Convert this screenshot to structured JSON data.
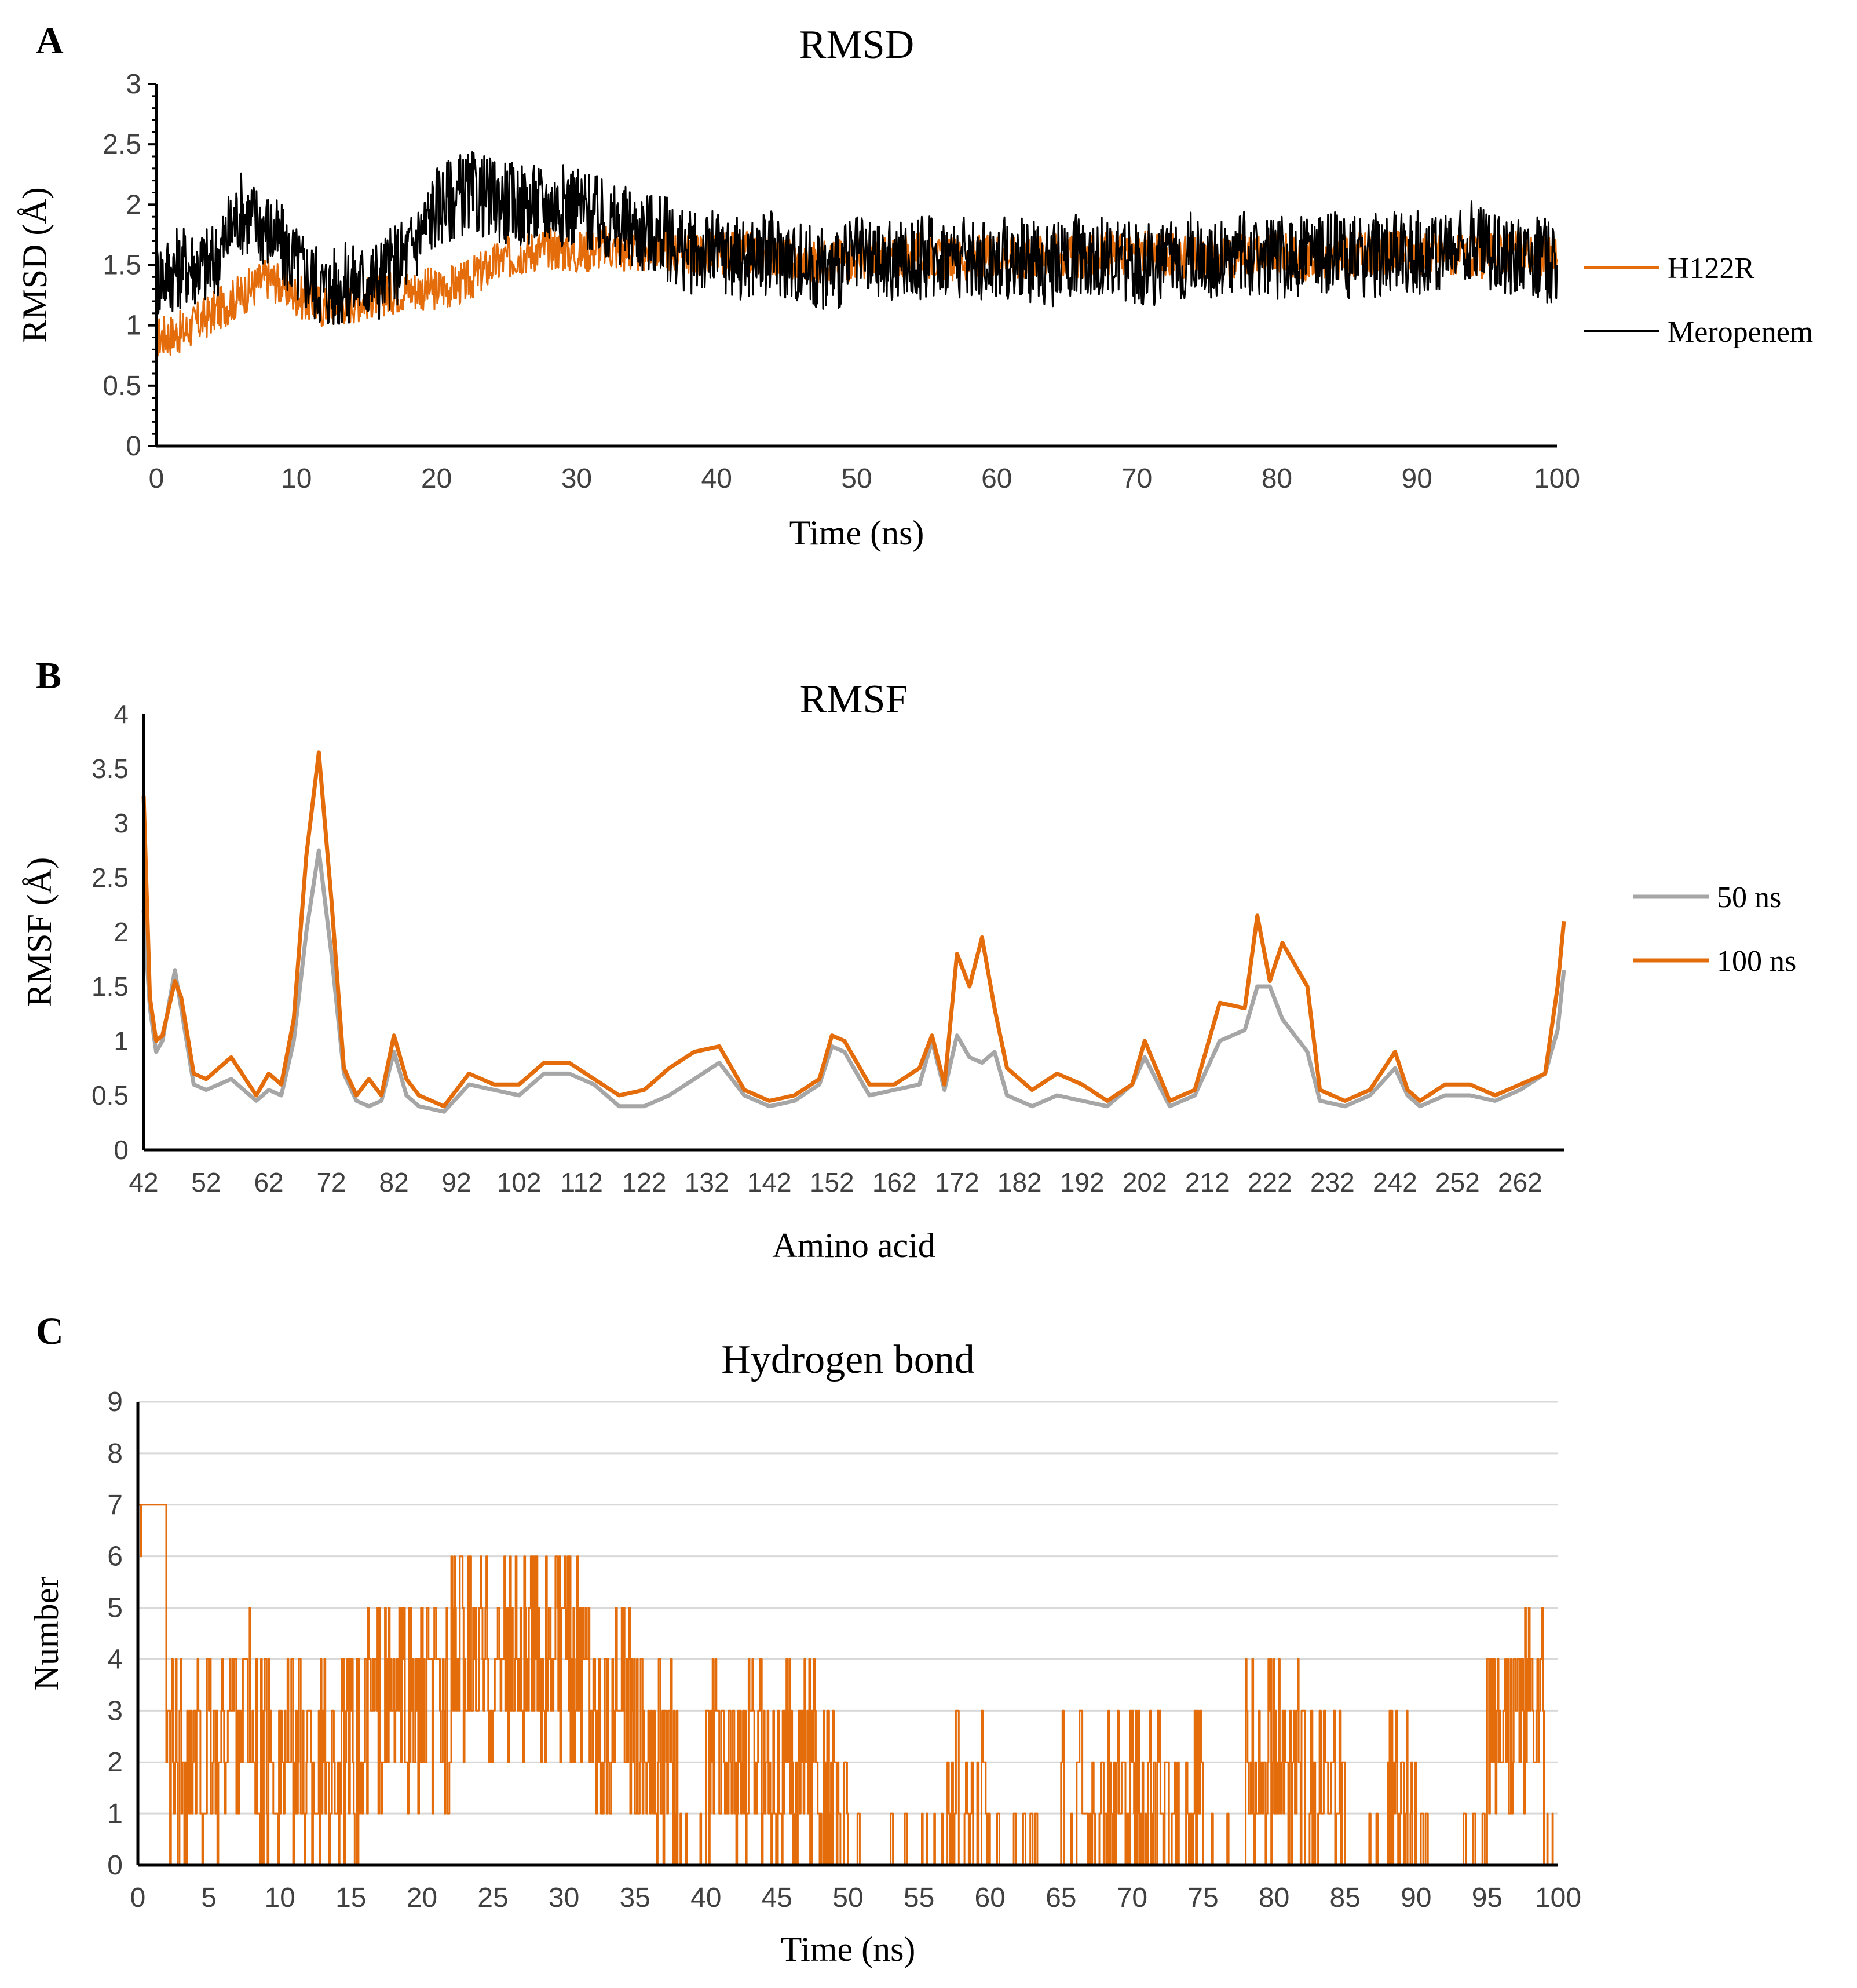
{
  "chart_data": [
    {
      "panel": "A",
      "type": "line",
      "title": "RMSD",
      "xlabel": "Time (ns)",
      "ylabel": "RMSD (Å)",
      "xlim": [
        0,
        100
      ],
      "ylim": [
        0,
        3
      ],
      "xticks": [
        0,
        10,
        20,
        30,
        40,
        50,
        60,
        70,
        80,
        90,
        100
      ],
      "yticks": [
        0,
        0.5,
        1,
        1.5,
        2,
        2.5,
        3
      ],
      "legend_position": "right",
      "series": [
        {
          "name": "H122R",
          "color": "#E46C0A",
          "x": [
            0,
            2,
            4,
            6,
            8,
            10,
            12,
            14,
            16,
            18,
            20,
            22,
            24,
            26,
            28,
            30,
            32,
            34,
            36,
            38,
            40,
            42,
            44,
            46,
            48,
            50,
            52,
            54,
            56,
            58,
            60,
            62,
            64,
            66,
            68,
            70,
            72,
            74,
            76,
            78,
            80,
            82,
            84,
            86,
            88,
            90,
            92,
            94,
            96,
            98,
            100
          ],
          "y": [
            0.9,
            0.95,
            1.1,
            1.25,
            1.4,
            1.25,
            1.15,
            1.2,
            1.25,
            1.3,
            1.3,
            1.35,
            1.5,
            1.6,
            1.65,
            1.6,
            1.65,
            1.6,
            1.65,
            1.6,
            1.6,
            1.6,
            1.6,
            1.5,
            1.55,
            1.55,
            1.55,
            1.6,
            1.55,
            1.55,
            1.6,
            1.55,
            1.6,
            1.55,
            1.6,
            1.6,
            1.6,
            1.55,
            1.55,
            1.6,
            1.6,
            1.55,
            1.55,
            1.6,
            1.6,
            1.6,
            1.6,
            1.55,
            1.6,
            1.6,
            1.55
          ]
        },
        {
          "name": "Meropenem",
          "color": "#000000",
          "x": [
            0,
            2,
            4,
            6,
            8,
            10,
            12,
            14,
            16,
            18,
            20,
            22,
            24,
            26,
            28,
            30,
            32,
            34,
            36,
            38,
            40,
            42,
            44,
            46,
            48,
            50,
            52,
            54,
            56,
            58,
            60,
            62,
            64,
            66,
            68,
            70,
            72,
            74,
            76,
            78,
            80,
            82,
            84,
            86,
            88,
            90,
            92,
            94,
            96,
            98,
            100
          ],
          "y": [
            1.4,
            1.5,
            1.5,
            1.95,
            1.8,
            1.5,
            1.3,
            1.35,
            1.4,
            1.6,
            2.0,
            2.1,
            2.05,
            2.0,
            2.0,
            2.0,
            1.85,
            1.8,
            1.75,
            1.6,
            1.6,
            1.55,
            1.6,
            1.5,
            1.45,
            1.55,
            1.5,
            1.55,
            1.6,
            1.55,
            1.55,
            1.55,
            1.5,
            1.6,
            1.55,
            1.5,
            1.5,
            1.6,
            1.55,
            1.6,
            1.55,
            1.6,
            1.6,
            1.55,
            1.6,
            1.6,
            1.6,
            1.7,
            1.6,
            1.6,
            1.5
          ]
        }
      ]
    },
    {
      "panel": "B",
      "type": "line",
      "title": "RMSF",
      "xlabel": "Amino acid",
      "ylabel": "RMSF (Å)",
      "xlim": [
        42,
        269
      ],
      "ylim": [
        0,
        4
      ],
      "xticks": [
        42,
        52,
        62,
        72,
        82,
        92,
        102,
        112,
        122,
        132,
        142,
        152,
        162,
        172,
        182,
        192,
        202,
        212,
        222,
        232,
        242,
        252,
        262
      ],
      "yticks": [
        0,
        0.5,
        1,
        1.5,
        2,
        2.5,
        3,
        3.5,
        4
      ],
      "legend_position": "right",
      "series": [
        {
          "name": "50 ns",
          "color": "#A6A6A6",
          "x": [
            42,
            43,
            44,
            45,
            47,
            48,
            50,
            52,
            56,
            60,
            62,
            64,
            66,
            68,
            70,
            72,
            74,
            76,
            78,
            80,
            82,
            84,
            86,
            90,
            94,
            98,
            102,
            106,
            110,
            114,
            118,
            122,
            126,
            130,
            134,
            138,
            142,
            146,
            150,
            152,
            154,
            158,
            162,
            166,
            168,
            170,
            172,
            174,
            176,
            178,
            180,
            184,
            188,
            192,
            196,
            200,
            202,
            206,
            210,
            214,
            218,
            220,
            222,
            224,
            228,
            230,
            234,
            238,
            242,
            244,
            246,
            250,
            254,
            258,
            262,
            266,
            268,
            269
          ],
          "x_note": "",
          "y": [
            2.2,
            1.3,
            0.9,
            1.0,
            1.65,
            1.3,
            0.6,
            0.55,
            0.65,
            0.45,
            0.55,
            0.5,
            1.0,
            2.0,
            2.75,
            1.8,
            0.7,
            0.45,
            0.4,
            0.45,
            0.9,
            0.5,
            0.4,
            0.35,
            0.6,
            0.55,
            0.5,
            0.7,
            0.7,
            0.6,
            0.4,
            0.4,
            0.5,
            0.65,
            0.8,
            0.5,
            0.4,
            0.45,
            0.6,
            0.95,
            0.9,
            0.5,
            0.55,
            0.6,
            1.0,
            0.55,
            1.05,
            0.85,
            0.8,
            0.9,
            0.5,
            0.4,
            0.5,
            0.45,
            0.4,
            0.6,
            0.85,
            0.4,
            0.5,
            1.0,
            1.1,
            1.5,
            1.5,
            1.2,
            0.9,
            0.45,
            0.4,
            0.5,
            0.75,
            0.5,
            0.4,
            0.5,
            0.5,
            0.45,
            0.55,
            0.7,
            1.1,
            1.65
          ]
        },
        {
          "name": "100 ns",
          "color": "#E46C0A",
          "x": [
            42,
            43,
            44,
            45,
            47,
            48,
            50,
            52,
            56,
            60,
            62,
            64,
            66,
            68,
            70,
            72,
            74,
            76,
            78,
            80,
            82,
            84,
            86,
            90,
            94,
            98,
            102,
            106,
            110,
            114,
            118,
            122,
            126,
            130,
            134,
            138,
            142,
            146,
            150,
            152,
            154,
            158,
            162,
            166,
            168,
            170,
            172,
            174,
            176,
            178,
            180,
            184,
            188,
            192,
            196,
            200,
            202,
            206,
            210,
            214,
            218,
            220,
            222,
            224,
            228,
            230,
            234,
            238,
            242,
            244,
            246,
            250,
            254,
            258,
            262,
            266,
            268,
            269
          ],
          "y": [
            3.25,
            1.4,
            1.0,
            1.05,
            1.55,
            1.4,
            0.7,
            0.65,
            0.85,
            0.5,
            0.7,
            0.6,
            1.2,
            2.7,
            3.65,
            2.3,
            0.75,
            0.5,
            0.65,
            0.5,
            1.05,
            0.65,
            0.5,
            0.4,
            0.7,
            0.6,
            0.6,
            0.8,
            0.8,
            0.65,
            0.5,
            0.55,
            0.75,
            0.9,
            0.95,
            0.55,
            0.45,
            0.5,
            0.65,
            1.05,
            1.0,
            0.6,
            0.6,
            0.75,
            1.05,
            0.6,
            1.8,
            1.5,
            1.95,
            1.3,
            0.75,
            0.55,
            0.7,
            0.6,
            0.45,
            0.6,
            1.0,
            0.45,
            0.55,
            1.35,
            1.3,
            2.15,
            1.55,
            1.9,
            1.5,
            0.55,
            0.45,
            0.55,
            0.9,
            0.55,
            0.45,
            0.6,
            0.6,
            0.5,
            0.6,
            0.7,
            1.5,
            2.1
          ]
        }
      ]
    },
    {
      "panel": "C",
      "type": "line",
      "title": "Hydrogen bond",
      "xlabel": "Time (ns)",
      "ylabel": "Number",
      "xlim": [
        0,
        100
      ],
      "ylim": [
        0,
        9
      ],
      "xticks": [
        0,
        5,
        10,
        15,
        20,
        25,
        30,
        35,
        40,
        45,
        50,
        55,
        60,
        65,
        70,
        75,
        80,
        85,
        90,
        95,
        100
      ],
      "yticks": [
        0,
        1,
        2,
        3,
        4,
        5,
        6,
        7,
        8,
        9
      ],
      "grid": true,
      "series": [
        {
          "name": "",
          "color": "#E46C0A",
          "x": [
            0,
            2,
            4,
            6,
            8,
            10,
            12,
            14,
            16,
            18,
            20,
            22,
            24,
            26,
            28,
            30,
            32,
            34,
            36,
            38,
            40,
            42,
            44,
            46,
            48,
            50,
            55,
            57,
            60,
            65,
            68,
            70,
            72,
            75,
            78,
            80,
            82,
            85,
            88,
            90,
            95,
            97,
            99,
            100
          ],
          "y": [
            8,
            2,
            2,
            3,
            2,
            2,
            2,
            2,
            3,
            3,
            3,
            4,
            4,
            4,
            4,
            4,
            3,
            3,
            2,
            0,
            2,
            2,
            2,
            2,
            1,
            0,
            0,
            1,
            0,
            1,
            1,
            1,
            1,
            0,
            2,
            2,
            1,
            0,
            1,
            0,
            3,
            3,
            0,
            0
          ]
        }
      ]
    }
  ],
  "labels": {
    "panel_a": "A",
    "panel_b": "B",
    "panel_c": "C"
  }
}
